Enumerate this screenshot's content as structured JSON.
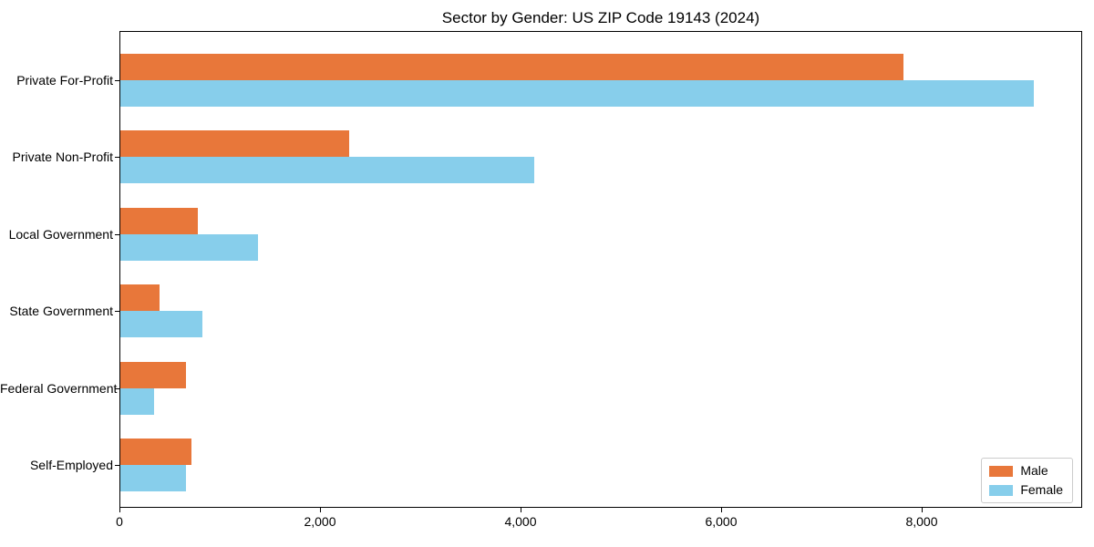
{
  "chart_data": {
    "type": "bar",
    "orientation": "horizontal",
    "title": "Sector by Gender: US ZIP Code 19143 (2024)",
    "categories": [
      "Private For-Profit",
      "Private Non-Profit",
      "Local Government",
      "State Government",
      "Federal Government",
      "Self-Employed"
    ],
    "series": [
      {
        "name": "Male",
        "color": "#e8773a",
        "values": [
          7810,
          2280,
          770,
          390,
          650,
          710
        ]
      },
      {
        "name": "Female",
        "color": "#87ceeb",
        "values": [
          9110,
          4130,
          1370,
          820,
          340,
          650
        ]
      }
    ],
    "xlabel": "",
    "ylabel": "",
    "xlim": [
      0,
      9580
    ],
    "xticks": {
      "values": [
        0,
        2000,
        4000,
        6000,
        8000
      ],
      "labels": [
        "0",
        "2,000",
        "4,000",
        "6,000",
        "8,000"
      ]
    },
    "grid": false,
    "legend": {
      "position": "lower right",
      "entries": [
        "Male",
        "Female"
      ]
    }
  }
}
